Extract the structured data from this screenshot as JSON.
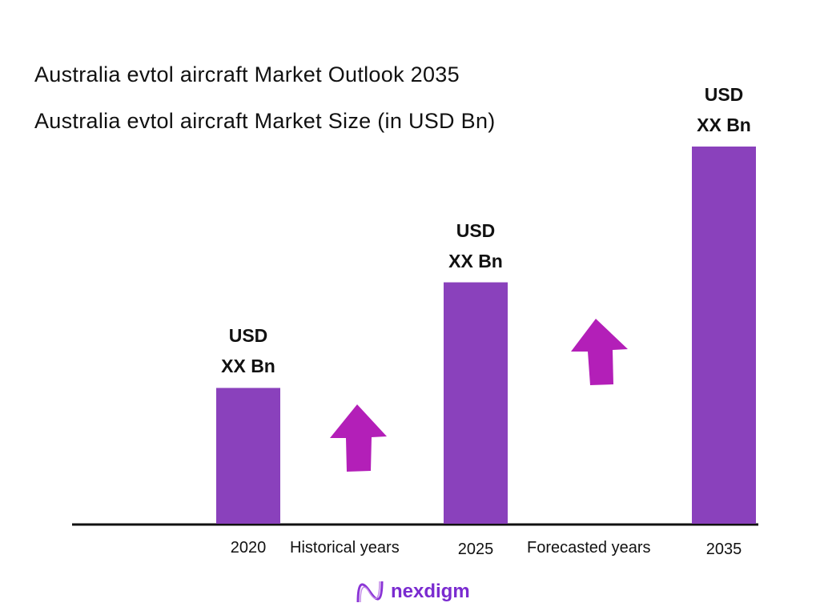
{
  "title": "Australia evtol aircraft Market Outlook 2035",
  "subtitle": "Australia evtol aircraft Market Size (in USD Bn)",
  "chart_data": {
    "type": "bar",
    "title": "Australia evtol aircraft Market Outlook 2035",
    "subtitle": "Australia evtol aircraft Market Size (in USD Bn)",
    "categories": [
      "2020",
      "2025",
      "2035"
    ],
    "values_relative_index": [
      36,
      64,
      100
    ],
    "data_labels": [
      {
        "line1": "USD",
        "line2": "XX Bn"
      },
      {
        "line1": "USD",
        "line2": "XX Bn"
      },
      {
        "line1": "USD",
        "line2": "XX Bn"
      }
    ],
    "period_labels": [
      "Historical years",
      "Forecasted years"
    ],
    "bar_color": "#8a41bc",
    "arrow_color": "#b31fb8",
    "grid": false
  },
  "logo": {
    "text": "nexdigm",
    "color": "#7a2bd0"
  }
}
